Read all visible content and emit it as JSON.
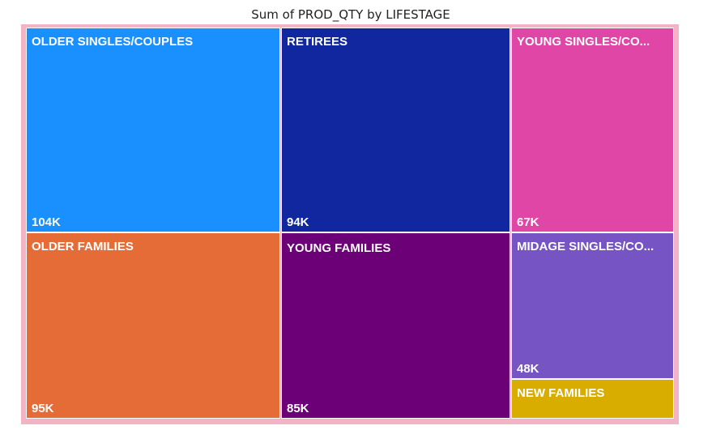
{
  "chart_data": {
    "type": "treemap",
    "title": "Sum of PROD_QTY by LIFESTAGE",
    "items": [
      {
        "name": "OLDER SINGLES/COUPLES",
        "label": "OLDER SINGLES/COUPLES",
        "value_label": "104K",
        "value": 104000,
        "color": "#1a90ff"
      },
      {
        "name": "RETIREES",
        "label": "RETIREES",
        "value_label": "94K",
        "value": 94000,
        "color": "#1027a0"
      },
      {
        "name": "YOUNG SINGLES/COUPLES",
        "label": "YOUNG SINGLES/CO...",
        "value_label": "67K",
        "value": 67000,
        "color": "#e046a6"
      },
      {
        "name": "OLDER FAMILIES",
        "label": "OLDER FAMILIES",
        "value_label": "95K",
        "value": 95000,
        "color": "#e56c36"
      },
      {
        "name": "YOUNG FAMILIES",
        "label": "YOUNG FAMILIES",
        "value_label": "85K",
        "value": 85000,
        "color": "#6b0077"
      },
      {
        "name": "MIDAGE SINGLES/COUPLES",
        "label": "MIDAGE SINGLES/CO...",
        "value_label": "48K",
        "value": 48000,
        "color": "#7654c4"
      },
      {
        "name": "NEW FAMILIES",
        "label": "NEW FAMILIES",
        "value_label": "",
        "value": null,
        "color": "#d8ad00"
      }
    ]
  }
}
